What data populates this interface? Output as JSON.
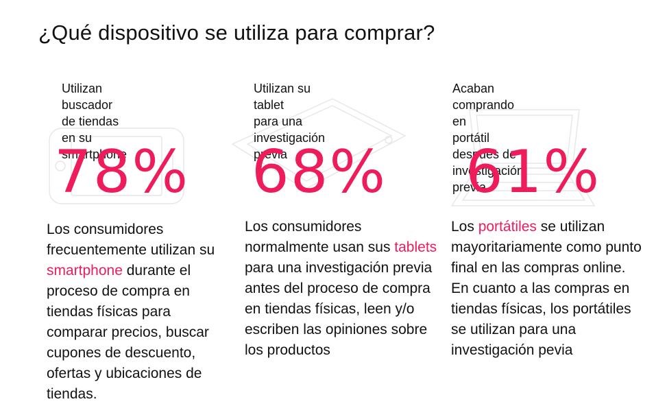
{
  "title": "¿Qué dispositivo se utiliza para comprar?",
  "colors": {
    "accent": "#ee1c5a",
    "text": "#111111",
    "device_outline": "#e6e6e6"
  },
  "columns": [
    {
      "icon": "smartphone-outline-icon",
      "subtitle": "Utilizan buscador\nde tiendas en su\nsmartphone",
      "percentage": "78%",
      "desc_before": "Los consumidores frecuentemente utilizan su ",
      "desc_highlight": "smartphone",
      "desc_after": " durante el proceso de compra en tiendas físicas para comparar precios, buscar cupones de descuento, ofertas y ubicaciones de tiendas."
    },
    {
      "icon": "tablet-outline-icon",
      "subtitle": "Utilizan su tablet\npara una\ninvestigación previa",
      "percentage": "68%",
      "desc_before": "Los consumidores normalmente usan sus ",
      "desc_highlight": "tablets",
      "desc_after": " para una investigación previa antes del proceso de compra en tiendas físicas, leen y/o escriben las opiniones sobre los productos"
    },
    {
      "icon": "laptop-outline-icon",
      "subtitle": "Acaban comprando en\nportátil después de\ninvestigación previa",
      "percentage": "61%",
      "desc_before": "Los ",
      "desc_highlight": "portátiles",
      "desc_after": " se utilizan mayoritariamente como punto final en las compras online. En cuanto a las compras en tiendas físicas, los portátiles se utilizan para una investigación pevia"
    }
  ]
}
